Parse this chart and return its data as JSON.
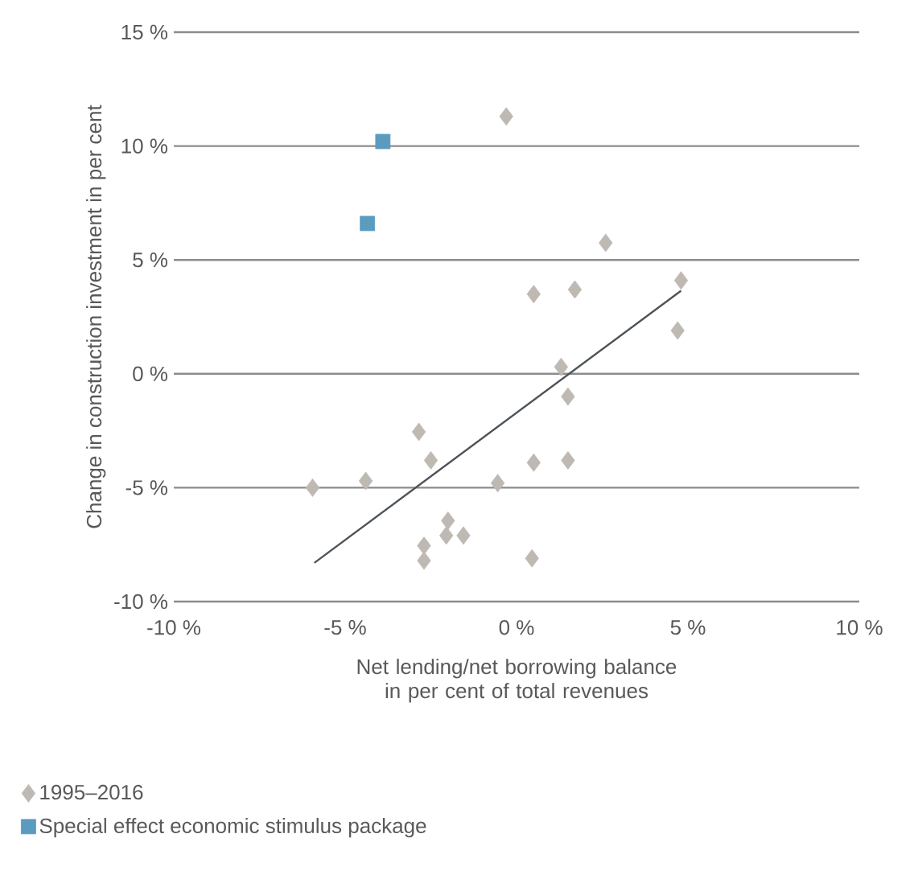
{
  "chart_data": {
    "type": "scatter",
    "xlabel": "Net lending/net borrowing balance in per cent of total revenues",
    "ylabel": "Change in construction investment in per cent",
    "xlim": [
      -10,
      10
    ],
    "ylim": [
      -10,
      15
    ],
    "xticks": [
      {
        "value": -10,
        "label": "-10 %"
      },
      {
        "value": -5,
        "label": "-5 %"
      },
      {
        "value": 0,
        "label": "0 %"
      },
      {
        "value": 5,
        "label": "5 %"
      },
      {
        "value": 10,
        "label": "10 %"
      }
    ],
    "yticks": [
      {
        "value": -10,
        "label": "-10 %"
      },
      {
        "value": -5,
        "label": "-5 %"
      },
      {
        "value": 0,
        "label": "0 %"
      },
      {
        "value": 5,
        "label": "5 %"
      },
      {
        "value": 10,
        "label": "10 %"
      },
      {
        "value": 15,
        "label": "15 %"
      }
    ],
    "grid": "y",
    "legend": "bottom",
    "series": [
      {
        "name": "1995–2016",
        "color": "#bfb9b4",
        "marker": "diamond",
        "x": [
          -0.3,
          0.5,
          -2.85,
          -2.5,
          -5.95,
          -4.4,
          -0.55,
          0.5,
          -2.0,
          -2.05,
          -1.55,
          -2.7,
          -2.7,
          0.45,
          2.6,
          1.7,
          4.8,
          4.7,
          1.3,
          1.5,
          1.5
        ],
        "values": [
          11.3,
          3.5,
          -2.55,
          -3.8,
          -5.0,
          -4.7,
          -4.8,
          -3.9,
          -6.45,
          -7.1,
          -7.1,
          -7.55,
          -8.2,
          -8.1,
          5.75,
          3.7,
          4.1,
          1.9,
          0.3,
          -1.0,
          -3.8
        ]
      },
      {
        "name": "Special effect economic stimulus package",
        "color": "#5b9bbf",
        "marker": "square",
        "x": [
          -3.9,
          -4.35
        ],
        "values": [
          10.2,
          6.6
        ]
      },
      {
        "type": "line",
        "color": "#4d5358",
        "marker": "none",
        "line_style": "solid",
        "x": [
          -5.9,
          4.8
        ],
        "values": [
          -8.3,
          3.65
        ]
      }
    ]
  }
}
